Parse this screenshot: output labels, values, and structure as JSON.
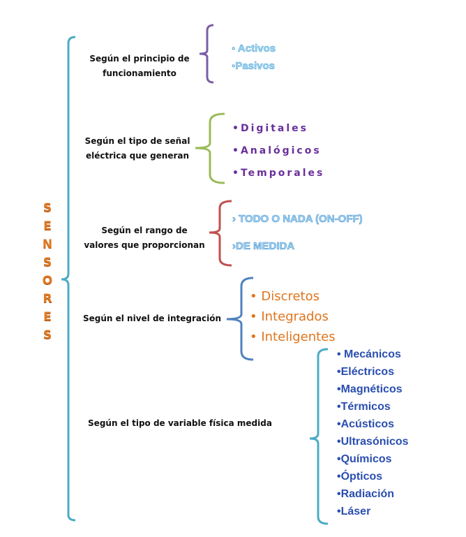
{
  "root": {
    "title_letters": [
      "S",
      "E",
      "N",
      "S",
      "O",
      "R",
      "E",
      "S"
    ],
    "color": "#e07a24"
  },
  "categories": [
    {
      "label_lines": [
        "Según el principio de",
        "funcionamiento"
      ],
      "bracket_color": "#7b5ea7",
      "items": [
        "◦ Activos",
        "◦Pasivos"
      ]
    },
    {
      "label_lines": [
        "Según el tipo de señal",
        "eléctrica que generan"
      ],
      "bracket_color": "#9bbb59",
      "items": [
        "•Digitales",
        "•Analógicos",
        "•Temporales"
      ]
    },
    {
      "label_lines": [
        "Según el rango de",
        "valores que proporcionan"
      ],
      "bracket_color": "#c0504d",
      "items": [
        "› TODO O NADA (ON-OFF)",
        "›DE MEDIDA"
      ]
    },
    {
      "label_lines": [
        "Según el nivel de integración"
      ],
      "bracket_color": "#4f81bd",
      "items": [
        "• Discretos",
        "• Integrados",
        "• Inteligentes"
      ]
    },
    {
      "label_lines": [
        "Según el tipo de variable física medida"
      ],
      "bracket_color": "#4bacc6",
      "items": [
        "• Mecánicos",
        "•Eléctricos",
        "•Magnéticos",
        "•Térmicos",
        "•Acústicos",
        "•Ultrasónicos",
        "•Químicos",
        "•Ópticos",
        "•Radiación",
        "•Láser"
      ]
    }
  ]
}
